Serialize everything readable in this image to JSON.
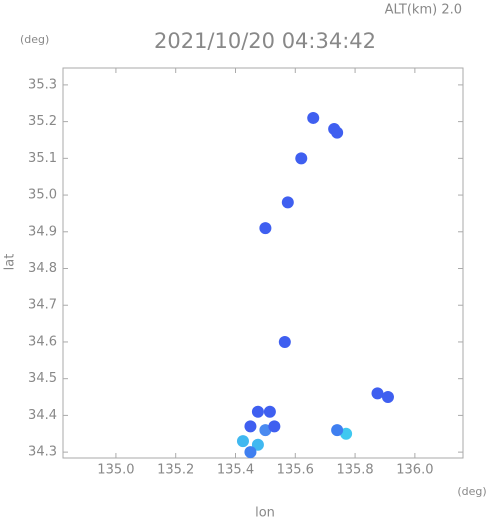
{
  "chart_data": {
    "type": "scatter",
    "title": "2021/10/20 04:34:42",
    "subtitle": "ALT(km) 2.0",
    "y_unit": "(deg)",
    "x_unit": "(deg)",
    "x_label": "lon",
    "y_label": "lat",
    "xlim": [
      134.823,
      136.161
    ],
    "ylim": [
      34.284,
      35.346
    ],
    "xticks": [
      {
        "value": 135,
        "label": "135.0"
      },
      135.2,
      135.4,
      135.6,
      135.8,
      {
        "value": 136,
        "label": "136.0"
      }
    ],
    "yticks": [
      34.3,
      34.4,
      34.5,
      34.6,
      34.7,
      34.8,
      34.9,
      {
        "value": 35,
        "label": "35.0"
      },
      35.1,
      35.2,
      35.3
    ],
    "x": [
      135.66,
      135.73,
      135.74,
      135.62,
      135.575,
      135.5,
      135.565,
      135.475,
      135.515,
      135.45,
      135.5,
      135.53,
      135.425,
      135.475,
      135.45,
      135.77,
      135.74,
      135.875,
      135.91
    ],
    "values": [
      35.21,
      35.18,
      35.17,
      35.1,
      34.98,
      34.91,
      34.6,
      34.41,
      34.41,
      34.37,
      34.36,
      34.37,
      34.33,
      34.32,
      34.3,
      34.35,
      34.36,
      34.46,
      34.45
    ],
    "colors": [
      "#3f5ff0",
      "#3f5ff0",
      "#3f5ff0",
      "#3f5ff0",
      "#3f5ff0",
      "#3f5ff0",
      "#3f5ff0",
      "#3f5ff0",
      "#3f5ff0",
      "#3f5ff0",
      "#4a8af0",
      "#3f5ff0",
      "#40b8f0",
      "#40b8f0",
      "#3f7ff0",
      "#40c8f0",
      "#3f7ff0",
      "#3f5ff0",
      "#3f5ff0"
    ]
  }
}
